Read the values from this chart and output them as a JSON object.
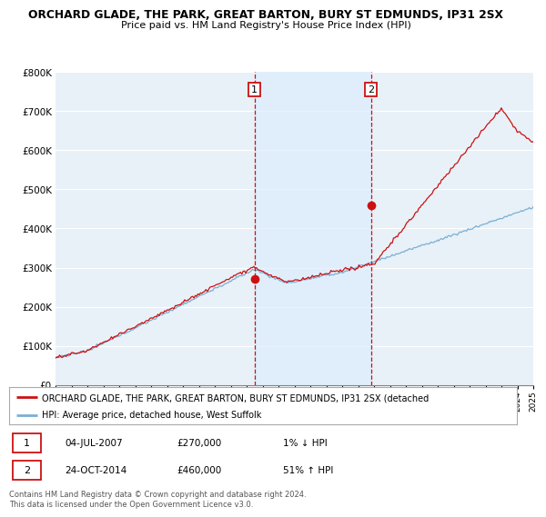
{
  "title1": "ORCHARD GLADE, THE PARK, GREAT BARTON, BURY ST EDMUNDS, IP31 2SX",
  "title2": "Price paid vs. HM Land Registry's House Price Index (HPI)",
  "legend_line1": "ORCHARD GLADE, THE PARK, GREAT BARTON, BURY ST EDMUNDS, IP31 2SX (detached",
  "legend_line2": "HPI: Average price, detached house, West Suffolk",
  "annotation1_date": "04-JUL-2007",
  "annotation1_price": "£270,000",
  "annotation1_pct": "1% ↓ HPI",
  "annotation2_date": "24-OCT-2014",
  "annotation2_price": "£460,000",
  "annotation2_pct": "51% ↑ HPI",
  "footer": "Contains HM Land Registry data © Crown copyright and database right 2024.\nThis data is licensed under the Open Government Licence v3.0.",
  "hpi_color": "#7bafd4",
  "price_color": "#cc1111",
  "vline_color": "#cc1111",
  "box_color": "#cc1111",
  "shade_color": "#ddeeff",
  "background_color": "#e8f1f8",
  "ylim": [
    0,
    800000
  ],
  "xlim": [
    1995,
    2025
  ],
  "sale1_x": 2007.5,
  "sale1_y": 270000,
  "sale2_x": 2014.8,
  "sale2_y": 460000
}
